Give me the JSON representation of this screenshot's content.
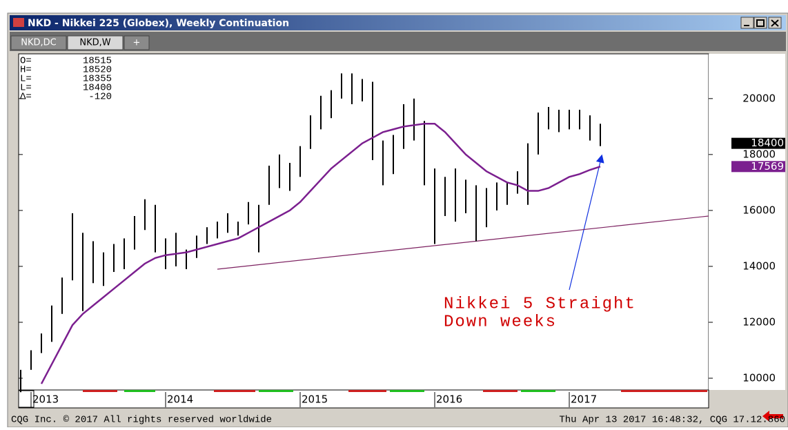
{
  "chart_data": {
    "type": "ohlc",
    "title": "NKD - Nikkei 225 (Globex), Weekly Continuation",
    "tabs": [
      "NKD,DC",
      "NKD,W",
      "+"
    ],
    "quote": [
      {
        "label": "O=",
        "value": 18515
      },
      {
        "label": "H=",
        "value": 18520
      },
      {
        "label": "L=",
        "value": 18355
      },
      {
        "label": "L=",
        "value": 18400
      },
      {
        "label": "Δ=",
        "value": -120
      }
    ],
    "categories": [
      null,
      "2013",
      null,
      null,
      null,
      null,
      null,
      null,
      null,
      null,
      null,
      null,
      null,
      null,
      "2014",
      null,
      null,
      null,
      null,
      null,
      null,
      null,
      null,
      null,
      null,
      null,
      null,
      "2015",
      null,
      null,
      null,
      null,
      null,
      null,
      null,
      null,
      null,
      null,
      null,
      null,
      "2016",
      null,
      null,
      null,
      null,
      null,
      null,
      null,
      null,
      null,
      null,
      null,
      null,
      "2017",
      null,
      null,
      null
    ],
    "high": [
      10300,
      11000,
      11600,
      12600,
      13600,
      15900,
      15200,
      14900,
      14500,
      14800,
      15000,
      15800,
      16400,
      16200,
      15000,
      15200,
      14600,
      15100,
      15400,
      15600,
      15900,
      15600,
      16300,
      16200,
      17600,
      18000,
      17700,
      18300,
      19400,
      20100,
      20300,
      20900,
      20900,
      20700,
      20600,
      18500,
      18700,
      19800,
      20000,
      19200,
      17500,
      17200,
      17500,
      17100,
      16900,
      16800,
      17000,
      17000,
      17400,
      18400,
      19500,
      19700,
      19600,
      19600,
      19600,
      19400,
      19100
    ],
    "low": [
      9500,
      10300,
      10900,
      11300,
      12300,
      13500,
      12400,
      13400,
      13300,
      13800,
      13900,
      14600,
      15300,
      14500,
      13900,
      14000,
      13900,
      14300,
      14800,
      15000,
      15200,
      15100,
      15500,
      14500,
      16200,
      16800,
      16700,
      17200,
      18200,
      18900,
      19300,
      20000,
      19800,
      19900,
      17800,
      16900,
      17300,
      18200,
      18500,
      16900,
      14800,
      15800,
      15600,
      15900,
      14900,
      15400,
      16000,
      16200,
      16600,
      16200,
      18000,
      18900,
      18800,
      18900,
      18900,
      18500,
      18300
    ],
    "bar_color": "#000000",
    "ma": {
      "color": "#7b1f8f",
      "values": [
        null,
        null,
        9800,
        10500,
        11200,
        11900,
        12300,
        12600,
        12900,
        13200,
        13500,
        13800,
        14100,
        14300,
        14400,
        14450,
        14500,
        14600,
        14700,
        14800,
        14900,
        15000,
        15200,
        15400,
        15600,
        15800,
        16000,
        16300,
        16700,
        17100,
        17500,
        17800,
        18100,
        18400,
        18600,
        18800,
        18900,
        19000,
        19050,
        19100,
        19100,
        18800,
        18400,
        18000,
        17700,
        17400,
        17200,
        17000,
        16900,
        16700,
        16700,
        16800,
        17000,
        17200,
        17300,
        17450,
        17569
      ]
    },
    "trendline": {
      "start": 13900,
      "end": 15800,
      "color": "#7b1f5f"
    },
    "ylim": [
      9580,
      21600
    ],
    "yticks": [
      10000,
      12000,
      14000,
      16000,
      18000,
      20000
    ],
    "last_labels": [
      {
        "value": 18400,
        "color": "#000000"
      },
      {
        "value": 17569,
        "color": "#7b1f8f"
      }
    ],
    "annotation": [
      "Nikkei 5 Straight",
      "Down weeks"
    ],
    "footer": [
      "CQG Inc. © 2017 All rights reserved worldwide",
      "Thu Apr 13 2017 16:48:32, CQG 17.12.860"
    ]
  }
}
